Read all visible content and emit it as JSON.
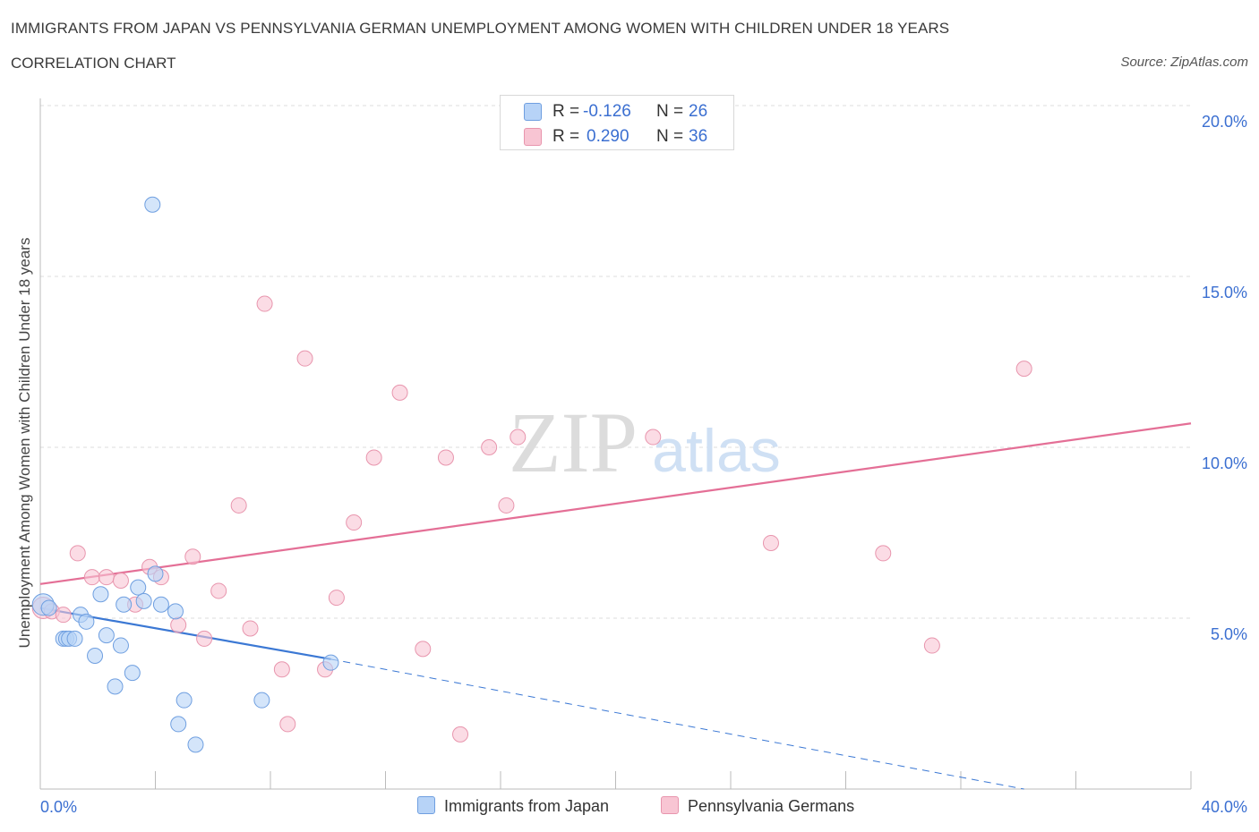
{
  "title": "IMMIGRANTS FROM JAPAN VS PENNSYLVANIA GERMAN UNEMPLOYMENT AMONG WOMEN WITH CHILDREN UNDER 18 YEARS",
  "subtitle": "CORRELATION CHART",
  "source": "Source: ZipAtlas.com",
  "watermark": {
    "zip": "ZIP",
    "atlas": "atlas"
  },
  "legend": {
    "r_label": "R =",
    "n_label": "N =",
    "series": [
      {
        "name": "Immigrants from Japan",
        "r": "-0.126",
        "n": "26",
        "fill": "#b7d3f7",
        "stroke": "#6f9fe0"
      },
      {
        "name": "Pennsylvania Germans",
        "r": "0.290",
        "n": "36",
        "fill": "#f8c5d3",
        "stroke": "#e895ad"
      }
    ]
  },
  "colors": {
    "blue_line": "#3b78d4",
    "pink_line": "#e46f96",
    "value_text": "#3b6fd1",
    "grid": "#dddddd"
  },
  "chart_data": {
    "type": "scatter",
    "title": "IMMIGRANTS FROM JAPAN VS PENNSYLVANIA GERMAN UNEMPLOYMENT AMONG WOMEN WITH CHILDREN UNDER 18 YEARS",
    "xlabel": "",
    "ylabel": "Unemployment Among Women with Children Under 18 years",
    "xlim": [
      0,
      40
    ],
    "ylim": [
      0,
      20
    ],
    "x_ticks": [
      {
        "value": 0,
        "label": "0.0%"
      },
      {
        "value": 40,
        "label": "40.0%"
      }
    ],
    "y_ticks": [
      {
        "value": 5,
        "label": "5.0%"
      },
      {
        "value": 10,
        "label": "10.0%"
      },
      {
        "value": 15,
        "label": "15.0%"
      },
      {
        "value": 20,
        "label": "20.0%"
      }
    ],
    "series": [
      {
        "name": "Immigrants from Japan",
        "r": -0.126,
        "n": 26,
        "points": [
          [
            0.1,
            5.4
          ],
          [
            0.3,
            5.3
          ],
          [
            0.8,
            4.4
          ],
          [
            0.9,
            4.4
          ],
          [
            1.0,
            4.4
          ],
          [
            1.2,
            4.4
          ],
          [
            1.4,
            5.1
          ],
          [
            1.6,
            4.9
          ],
          [
            1.9,
            3.9
          ],
          [
            2.1,
            5.7
          ],
          [
            2.3,
            4.5
          ],
          [
            2.6,
            3.0
          ],
          [
            2.8,
            4.2
          ],
          [
            2.9,
            5.4
          ],
          [
            3.2,
            3.4
          ],
          [
            3.4,
            5.9
          ],
          [
            3.6,
            5.5
          ],
          [
            3.9,
            17.1
          ],
          [
            4.0,
            6.3
          ],
          [
            4.2,
            5.4
          ],
          [
            4.7,
            5.2
          ],
          [
            4.8,
            1.9
          ],
          [
            5.0,
            2.6
          ],
          [
            5.4,
            1.3
          ],
          [
            7.7,
            2.6
          ],
          [
            10.1,
            3.7
          ]
        ],
        "trend": {
          "x": [
            0,
            10.1
          ],
          "y": [
            5.3,
            3.8
          ]
        },
        "trend_extrapolated": {
          "x": [
            10.1,
            34.2
          ],
          "y": [
            3.8,
            0
          ]
        }
      },
      {
        "name": "Pennsylvania Germans",
        "r": 0.29,
        "n": 36,
        "points": [
          [
            0.1,
            5.3
          ],
          [
            0.4,
            5.2
          ],
          [
            0.8,
            5.1
          ],
          [
            1.3,
            6.9
          ],
          [
            1.8,
            6.2
          ],
          [
            2.3,
            6.2
          ],
          [
            2.8,
            6.1
          ],
          [
            3.3,
            5.4
          ],
          [
            3.8,
            6.5
          ],
          [
            4.2,
            6.2
          ],
          [
            4.8,
            4.8
          ],
          [
            5.3,
            6.8
          ],
          [
            5.7,
            4.4
          ],
          [
            6.2,
            5.8
          ],
          [
            6.9,
            8.3
          ],
          [
            7.3,
            4.7
          ],
          [
            7.8,
            14.2
          ],
          [
            8.4,
            3.5
          ],
          [
            8.6,
            1.9
          ],
          [
            9.2,
            12.6
          ],
          [
            9.9,
            3.5
          ],
          [
            10.3,
            5.6
          ],
          [
            10.9,
            7.8
          ],
          [
            11.6,
            9.7
          ],
          [
            12.5,
            11.6
          ],
          [
            13.3,
            4.1
          ],
          [
            14.1,
            9.7
          ],
          [
            14.6,
            1.6
          ],
          [
            15.6,
            10.0
          ],
          [
            16.2,
            8.3
          ],
          [
            16.6,
            10.3
          ],
          [
            21.3,
            10.3
          ],
          [
            25.4,
            7.2
          ],
          [
            29.3,
            6.9
          ],
          [
            31.0,
            4.2
          ],
          [
            34.2,
            12.3
          ]
        ],
        "trend": {
          "x": [
            0,
            40
          ],
          "y": [
            6.0,
            10.7
          ]
        }
      }
    ]
  }
}
